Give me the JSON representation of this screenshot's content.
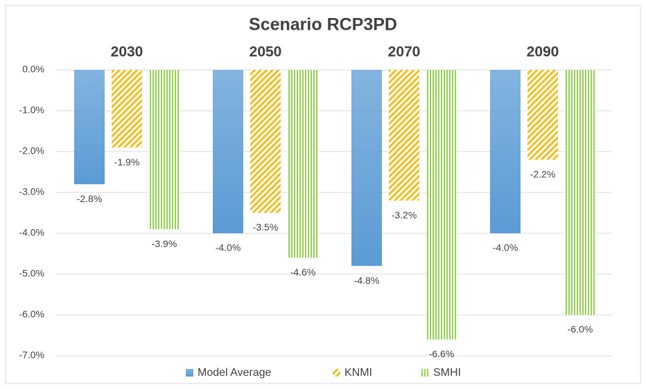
{
  "chart_data": {
    "type": "bar",
    "title": "Scenario RCP3PD",
    "categories": [
      "2030",
      "2050",
      "2070",
      "2090"
    ],
    "series": [
      {
        "name": "Model Average",
        "color": "#5b9bd5",
        "fill_style": "gradient",
        "values": [
          -2.8,
          -4.0,
          -4.8,
          -4.0
        ],
        "value_labels": [
          "-2.8%",
          "-4.0%",
          "-4.8%",
          "-4.0%"
        ]
      },
      {
        "name": "KNMI",
        "color": "#f5bc1c",
        "fill_style": "diagonal",
        "values": [
          -1.9,
          -3.5,
          -3.2,
          -2.2
        ],
        "value_labels": [
          "-1.9%",
          "-3.5%",
          "-3.2%",
          "-2.2%"
        ]
      },
      {
        "name": "SMHI",
        "color": "#92d050",
        "fill_style": "vertical",
        "values": [
          -3.9,
          -4.6,
          -6.6,
          -6.0
        ],
        "value_labels": [
          "-3.9%",
          "-4.6%",
          "-6.6%",
          "-6.0%"
        ]
      }
    ],
    "ylim": [
      -7,
      0
    ],
    "yticks": [
      {
        "value": 0,
        "label": "0.0%"
      },
      {
        "value": -1,
        "label": "-1.0%"
      },
      {
        "value": -2,
        "label": "-2.0%"
      },
      {
        "value": -3,
        "label": "-3.0%"
      },
      {
        "value": -4,
        "label": "-4.0%"
      },
      {
        "value": -5,
        "label": "-5.0%"
      },
      {
        "value": -6,
        "label": "-6.0%"
      },
      {
        "value": -7,
        "label": "-7.0%"
      }
    ],
    "grid": true,
    "legend": "bottom"
  }
}
